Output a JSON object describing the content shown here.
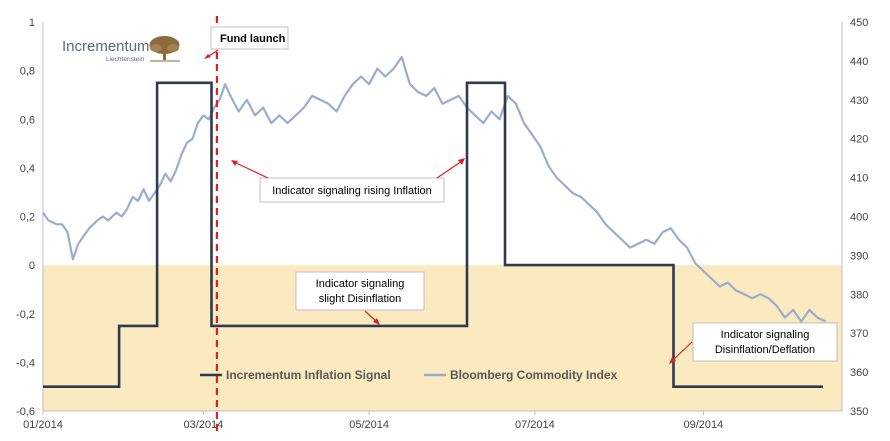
{
  "chart_data": {
    "type": "line",
    "title": "",
    "x_ticks": [
      "01/2014",
      "03/2014",
      "05/2014",
      "07/2014",
      "09/2014"
    ],
    "y_left": {
      "ylim": [
        -0.6,
        1.0
      ],
      "ticks": [
        "-0,6",
        "-0,4",
        "-0,2",
        "0",
        "0,2",
        "0,4",
        "0,6",
        "0,8",
        "1"
      ]
    },
    "y_right": {
      "ylim": [
        350,
        450
      ],
      "ticks": [
        "350",
        "360",
        "370",
        "380",
        "390",
        "400",
        "410",
        "420",
        "430",
        "440",
        "450"
      ]
    },
    "grid": false,
    "negative_zone_color": "#fbeac0",
    "series": [
      {
        "name": "Incrementum Inflation Signal",
        "axis": "left",
        "color": "#2f3a4e",
        "step": true,
        "points": [
          [
            "2014-01-01",
            -0.5
          ],
          [
            "2014-01-29",
            -0.25
          ],
          [
            "2014-02-12",
            0.75
          ],
          [
            "2014-03-04",
            -0.25
          ],
          [
            "2014-06-06",
            0.75
          ],
          [
            "2014-06-20",
            0.0
          ],
          [
            "2014-08-21",
            -0.5
          ],
          [
            "2014-10-15",
            -0.5
          ]
        ]
      },
      {
        "name": "Bloomberg Commodity Index",
        "axis": "right",
        "color": "#9aaecb",
        "points": [
          [
            "2014-01-01",
            401
          ],
          [
            "2014-01-03",
            399
          ],
          [
            "2014-01-06",
            398
          ],
          [
            "2014-01-08",
            398
          ],
          [
            "2014-01-10",
            396
          ],
          [
            "2014-01-12",
            389
          ],
          [
            "2014-01-14",
            393
          ],
          [
            "2014-01-16",
            395
          ],
          [
            "2014-01-18",
            397
          ],
          [
            "2014-01-21",
            399
          ],
          [
            "2014-01-23",
            400
          ],
          [
            "2014-01-25",
            399
          ],
          [
            "2014-01-28",
            401
          ],
          [
            "2014-01-30",
            400
          ],
          [
            "2014-02-01",
            402
          ],
          [
            "2014-02-03",
            405
          ],
          [
            "2014-02-05",
            404
          ],
          [
            "2014-02-07",
            407
          ],
          [
            "2014-02-09",
            404
          ],
          [
            "2014-02-11",
            406
          ],
          [
            "2014-02-13",
            408
          ],
          [
            "2014-02-15",
            411
          ],
          [
            "2014-02-17",
            409
          ],
          [
            "2014-02-19",
            412
          ],
          [
            "2014-02-21",
            416
          ],
          [
            "2014-02-23",
            419
          ],
          [
            "2014-02-25",
            420
          ],
          [
            "2014-02-27",
            424
          ],
          [
            "2014-03-01",
            426
          ],
          [
            "2014-03-03",
            425
          ],
          [
            "2014-03-05",
            428
          ],
          [
            "2014-03-07",
            430
          ],
          [
            "2014-03-09",
            434
          ],
          [
            "2014-03-11",
            431
          ],
          [
            "2014-03-14",
            427
          ],
          [
            "2014-03-17",
            430
          ],
          [
            "2014-03-20",
            426
          ],
          [
            "2014-03-23",
            428
          ],
          [
            "2014-03-26",
            424
          ],
          [
            "2014-03-29",
            426
          ],
          [
            "2014-04-01",
            424
          ],
          [
            "2014-04-04",
            426
          ],
          [
            "2014-04-07",
            428
          ],
          [
            "2014-04-10",
            431
          ],
          [
            "2014-04-13",
            430
          ],
          [
            "2014-04-16",
            429
          ],
          [
            "2014-04-19",
            427
          ],
          [
            "2014-04-22",
            431
          ],
          [
            "2014-04-25",
            434
          ],
          [
            "2014-04-28",
            436
          ],
          [
            "2014-05-01",
            434
          ],
          [
            "2014-05-04",
            438
          ],
          [
            "2014-05-07",
            436
          ],
          [
            "2014-05-10",
            438
          ],
          [
            "2014-05-13",
            441
          ],
          [
            "2014-05-16",
            434
          ],
          [
            "2014-05-19",
            432
          ],
          [
            "2014-05-22",
            431
          ],
          [
            "2014-05-25",
            433
          ],
          [
            "2014-05-28",
            429
          ],
          [
            "2014-05-31",
            430
          ],
          [
            "2014-06-03",
            431
          ],
          [
            "2014-06-06",
            428
          ],
          [
            "2014-06-09",
            426
          ],
          [
            "2014-06-12",
            424
          ],
          [
            "2014-06-15",
            427
          ],
          [
            "2014-06-18",
            425
          ],
          [
            "2014-06-21",
            431
          ],
          [
            "2014-06-24",
            429
          ],
          [
            "2014-06-27",
            424
          ],
          [
            "2014-06-30",
            421
          ],
          [
            "2014-07-03",
            418
          ],
          [
            "2014-07-06",
            413
          ],
          [
            "2014-07-09",
            410
          ],
          [
            "2014-07-12",
            408
          ],
          [
            "2014-07-15",
            406
          ],
          [
            "2014-07-18",
            405
          ],
          [
            "2014-07-21",
            403
          ],
          [
            "2014-07-24",
            401
          ],
          [
            "2014-07-27",
            398
          ],
          [
            "2014-07-30",
            396
          ],
          [
            "2014-08-02",
            394
          ],
          [
            "2014-08-05",
            392
          ],
          [
            "2014-08-08",
            393
          ],
          [
            "2014-08-11",
            394
          ],
          [
            "2014-08-14",
            393
          ],
          [
            "2014-08-17",
            396
          ],
          [
            "2014-08-20",
            397
          ],
          [
            "2014-08-23",
            394
          ],
          [
            "2014-08-26",
            392
          ],
          [
            "2014-08-29",
            388
          ],
          [
            "2014-09-01",
            386
          ],
          [
            "2014-09-04",
            384
          ],
          [
            "2014-09-07",
            382
          ],
          [
            "2014-09-10",
            383
          ],
          [
            "2014-09-13",
            381
          ],
          [
            "2014-09-16",
            380
          ],
          [
            "2014-09-19",
            379
          ],
          [
            "2014-09-22",
            380
          ],
          [
            "2014-09-25",
            379
          ],
          [
            "2014-09-28",
            377
          ],
          [
            "2014-10-01",
            374
          ],
          [
            "2014-10-04",
            376
          ],
          [
            "2014-10-07",
            373
          ],
          [
            "2014-10-10",
            376
          ],
          [
            "2014-10-13",
            374
          ],
          [
            "2014-10-16",
            373
          ]
        ]
      }
    ],
    "markers": [
      {
        "label": "Fund launch",
        "date": "2014-03-06",
        "style": "dashed",
        "color": "#e02020"
      }
    ],
    "annotations": [
      {
        "name": "rising",
        "lines": [
          "Indicator signaling rising Inflation"
        ]
      },
      {
        "name": "slight",
        "lines": [
          "Indicator signaling",
          "slight Disinflation"
        ]
      },
      {
        "name": "deflation",
        "lines": [
          "Indicator signaling",
          "Disinflation/Deflation"
        ]
      }
    ],
    "legend": {
      "placement": "bottom-center",
      "items": [
        {
          "label": "Incrementum Inflation Signal",
          "color": "#2f3a4e"
        },
        {
          "label": "Bloomberg Commodity Index",
          "color": "#9aaecb"
        }
      ]
    }
  },
  "logo": {
    "name": "Incrementum",
    "sub": "Liechtenstein",
    "icon": "tree-icon",
    "color": "#8b6a3e"
  }
}
